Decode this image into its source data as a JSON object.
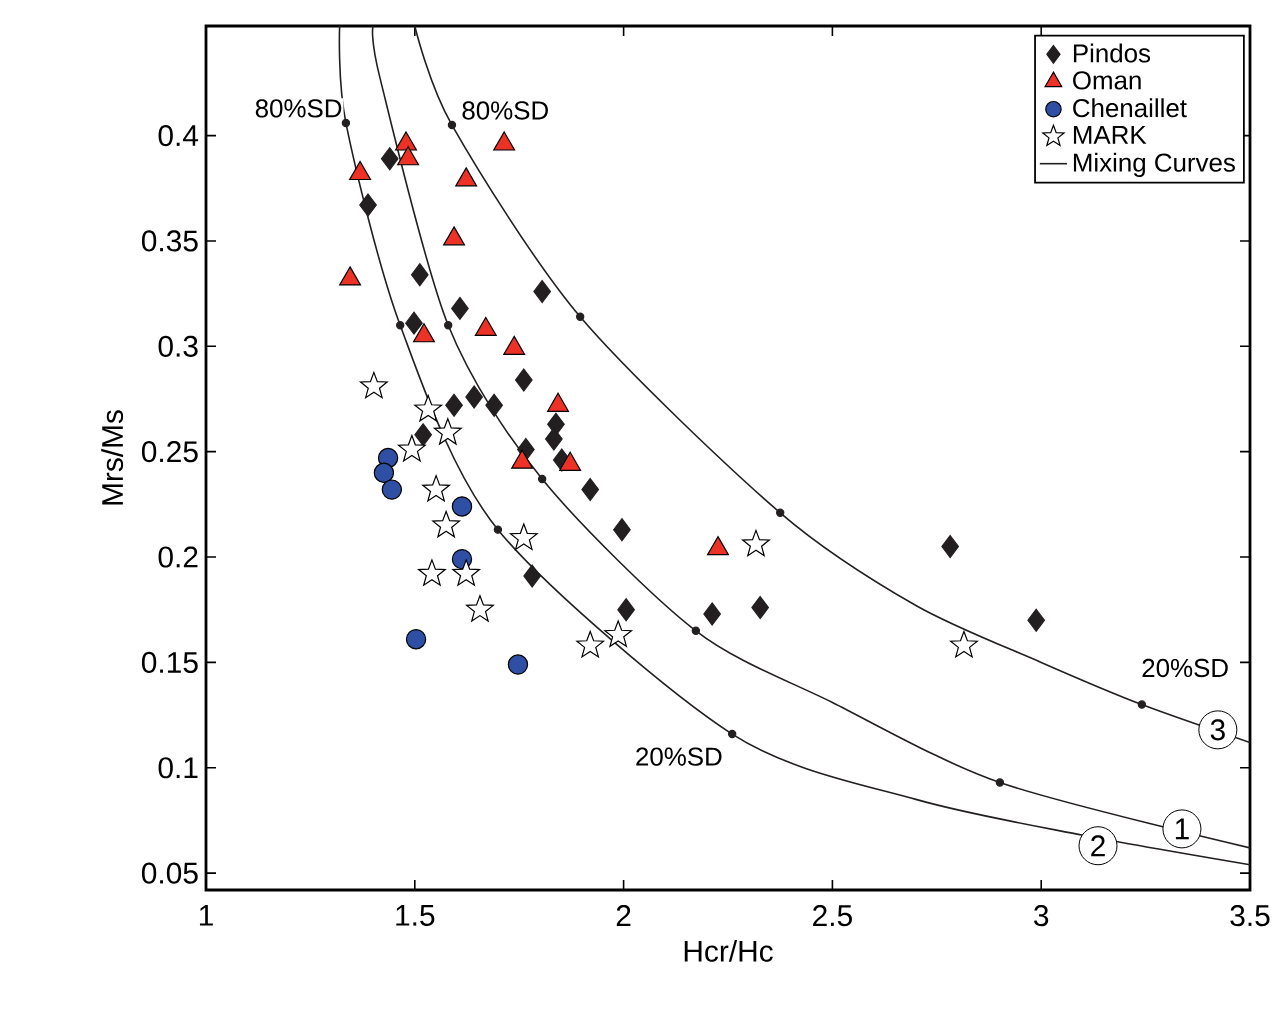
{
  "chart_data": {
    "type": "scatter",
    "xlabel": "Hcr/Hc",
    "ylabel": "Mrs/Ms",
    "xlim": [
      1,
      3.5
    ],
    "ylim": [
      0.042,
      0.452
    ],
    "xticks": [
      1,
      1.5,
      2,
      2.5,
      3,
      3.5
    ],
    "yticks": [
      0.05,
      0.1,
      0.15,
      0.2,
      0.25,
      0.3,
      0.35,
      0.4
    ],
    "legend": "top right",
    "grid": false,
    "series": [
      {
        "name": "Mixing Curves",
        "type": "line",
        "color": "#231f20",
        "marker": "none",
        "x": [
          1.32,
          1.335,
          1.465,
          1.699,
          2.26,
          2.7,
          3.1,
          3.5
        ],
        "values": [
          0.452,
          0.406,
          0.31,
          0.213,
          0.116,
          0.085,
          0.068,
          0.054
        ]
      },
      {
        "type": "line",
        "color": "#231f20",
        "marker": "none",
        "x": [
          1.4,
          1.417,
          1.58,
          1.805,
          2.173,
          2.5,
          2.901,
          3.5
        ],
        "values": [
          0.452,
          0.427,
          0.31,
          0.237,
          0.165,
          0.131,
          0.093,
          0.062
        ]
      },
      {
        "type": "line",
        "color": "#231f20",
        "marker": "none",
        "x": [
          1.5,
          1.589,
          1.896,
          2.375,
          2.7,
          3.0,
          3.241,
          3.5
        ],
        "values": [
          0.452,
          0.405,
          0.314,
          0.221,
          0.177,
          0.15,
          0.13,
          0.112
        ]
      },
      {
        "color": "#231f20",
        "marker": "circle",
        "x": [
          1.335,
          1.465,
          1.699,
          2.26,
          1.58,
          1.805,
          2.173,
          2.901,
          1.589,
          1.896,
          2.375,
          3.241
        ],
        "values": [
          0.406,
          0.31,
          0.213,
          0.116,
          0.31,
          0.237,
          0.165,
          0.093,
          0.405,
          0.314,
          0.221,
          0.13
        ]
      },
      {
        "name": "Pindos",
        "color": "#231f20",
        "marker": "diamond",
        "x": [
          1.44,
          1.388,
          1.512,
          1.805,
          1.608,
          1.498,
          1.761,
          1.642,
          1.69,
          1.594,
          1.838,
          1.52,
          1.833,
          1.766,
          1.852,
          1.92,
          1.996,
          1.781,
          2.006,
          2.212,
          2.327,
          2.782,
          2.988
        ],
        "values": [
          0.389,
          0.367,
          0.334,
          0.326,
          0.318,
          0.311,
          0.284,
          0.276,
          0.272,
          0.272,
          0.263,
          0.258,
          0.256,
          0.251,
          0.246,
          0.232,
          0.213,
          0.191,
          0.175,
          0.173,
          0.176,
          0.205,
          0.17
        ]
      },
      {
        "name": "Oman",
        "color": "#ed3124",
        "marker": "triangle",
        "x": [
          1.479,
          1.484,
          1.714,
          1.369,
          1.623,
          1.594,
          1.345,
          1.522,
          1.67,
          1.738,
          1.843,
          1.757,
          1.872,
          2.226
        ],
        "values": [
          0.396,
          0.389,
          0.396,
          0.382,
          0.379,
          0.351,
          0.332,
          0.305,
          0.308,
          0.299,
          0.272,
          0.245,
          0.244,
          0.204
        ]
      },
      {
        "name": "Chenaillet",
        "color": "#2e4fa3",
        "marker": "circle",
        "x": [
          1.436,
          1.426,
          1.445,
          1.613,
          1.613,
          1.503,
          1.747
        ],
        "values": [
          0.247,
          0.24,
          0.232,
          0.224,
          0.199,
          0.161,
          0.149
        ]
      },
      {
        "name": "MARK",
        "color": "#ffffff",
        "marker": "star",
        "x": [
          1.402,
          1.532,
          1.579,
          1.493,
          1.551,
          1.575,
          1.541,
          1.623,
          1.656,
          1.761,
          1.92,
          1.987,
          2.317,
          2.815
        ],
        "values": [
          0.281,
          0.27,
          0.259,
          0.251,
          0.232,
          0.215,
          0.192,
          0.192,
          0.175,
          0.209,
          0.158,
          0.163,
          0.206,
          0.158
        ]
      }
    ],
    "annotations": [
      {
        "text": "80%SD",
        "x": 1.335,
        "y": 0.406
      },
      {
        "text": "80%SD",
        "x": 1.589,
        "y": 0.405
      },
      {
        "text": "20%SD",
        "x": 3.241,
        "y": 0.13
      },
      {
        "text": "20%SD",
        "x": 2.26,
        "y": 0.116
      },
      {
        "text": "3",
        "x": 3.423,
        "y": 0.118
      },
      {
        "text": "1",
        "x": 3.337,
        "y": 0.071
      },
      {
        "text": "2",
        "x": 3.136,
        "y": 0.063
      }
    ]
  }
}
